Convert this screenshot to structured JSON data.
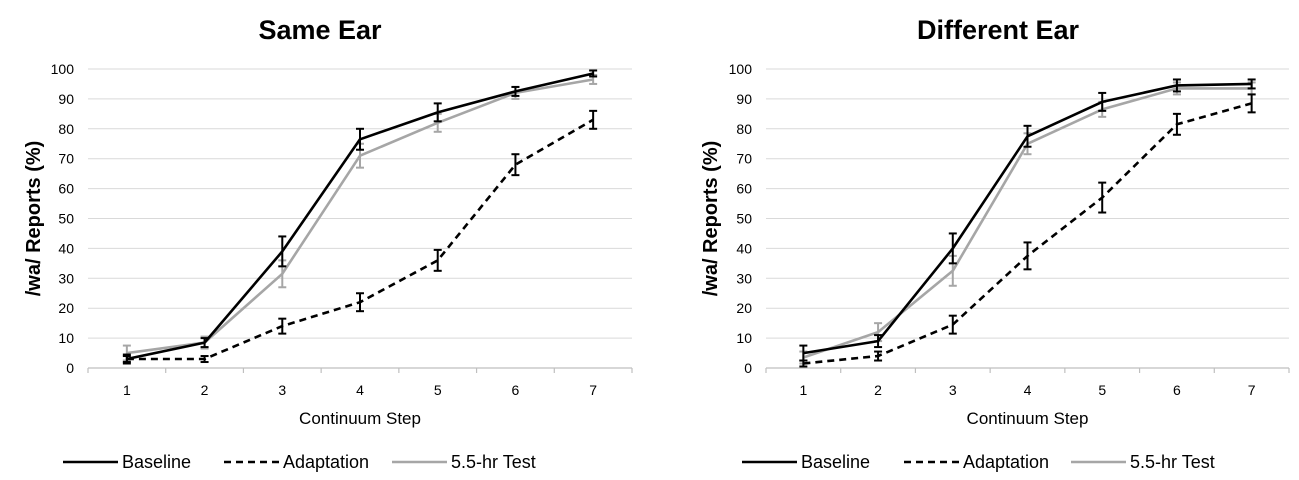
{
  "chart_data": [
    {
      "type": "line",
      "title": "Same Ear",
      "xlabel": "Continuum Step",
      "ylabel": "/wa/ Reports (%)",
      "x": [
        1,
        2,
        3,
        4,
        5,
        6,
        7
      ],
      "ylim": [
        0,
        100
      ],
      "yticks": [
        0,
        10,
        20,
        30,
        40,
        50,
        60,
        70,
        80,
        90,
        100
      ],
      "grid": true,
      "legend": "bottom",
      "series": [
        {
          "name": "Baseline",
          "color": "#000000",
          "dash": "solid",
          "values": [
            3,
            8.5,
            39,
            76.5,
            85.5,
            92.5,
            98.5
          ],
          "errors": [
            1.5,
            1.5,
            5,
            3.5,
            3,
            1.5,
            1
          ]
        },
        {
          "name": "Adaptation",
          "color": "#000000",
          "dash": "dashed",
          "values": [
            3,
            3,
            14,
            22,
            36,
            68,
            83
          ],
          "errors": [
            1,
            1,
            2.5,
            3,
            3.5,
            3.5,
            3
          ]
        },
        {
          "name": "5.5-hr Test",
          "color": "#a6a6a6",
          "dash": "solid",
          "values": [
            5,
            8.5,
            31.5,
            71,
            82,
            92,
            96.5
          ],
          "errors": [
            2.5,
            2,
            4.5,
            4,
            3,
            2,
            1.5
          ]
        }
      ]
    },
    {
      "type": "line",
      "title": "Different Ear",
      "xlabel": "Continuum Step",
      "ylabel": "/wa/ Reports (%)",
      "x": [
        1,
        2,
        3,
        4,
        5,
        6,
        7
      ],
      "ylim": [
        0,
        100
      ],
      "yticks": [
        0,
        10,
        20,
        30,
        40,
        50,
        60,
        70,
        80,
        90,
        100
      ],
      "grid": true,
      "legend": "bottom",
      "series": [
        {
          "name": "Baseline",
          "color": "#000000",
          "dash": "solid",
          "values": [
            5,
            9,
            40,
            77.5,
            89,
            94.5,
            95
          ],
          "errors": [
            2.5,
            2,
            5,
            3.5,
            3,
            2,
            1.5
          ]
        },
        {
          "name": "Adaptation",
          "color": "#000000",
          "dash": "dashed",
          "values": [
            1.5,
            4,
            14.5,
            37.5,
            57,
            81.5,
            88.5
          ],
          "errors": [
            1,
            1.5,
            3,
            4.5,
            5,
            3.5,
            3
          ]
        },
        {
          "name": "5.5-hr Test",
          "color": "#a6a6a6",
          "dash": "solid",
          "values": [
            3.5,
            12,
            32.5,
            75,
            86.5,
            93.5,
            93.5
          ],
          "errors": [
            2,
            3,
            5,
            3.5,
            2.5,
            2,
            2
          ]
        }
      ]
    }
  ]
}
